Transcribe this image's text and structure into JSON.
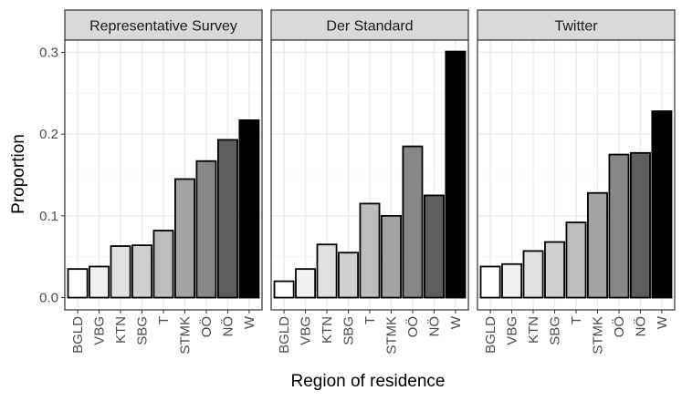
{
  "chart_data": {
    "type": "bar",
    "xlabel": "Region of residence",
    "ylabel": "Proportion",
    "ylim": [
      -0.015,
      0.315
    ],
    "yticks": [
      0.0,
      0.1,
      0.2,
      0.3
    ],
    "ytick_labels": [
      "0.0",
      "0.1",
      "0.2",
      "0.3"
    ],
    "categories": [
      "BGLD",
      "VBG",
      "KTN",
      "SBG",
      "T",
      "STMK",
      "OÖ",
      "NÖ",
      "W"
    ],
    "grid": true,
    "legend": "none",
    "fill_colors": [
      "#ffffff",
      "#f0f0f0",
      "#e0e0e0",
      "#d0d0d0",
      "#bdbdbd",
      "#a3a3a3",
      "#878787",
      "#5e5e5e",
      "#000000"
    ],
    "facets": [
      {
        "name": "Representative Survey",
        "values": [
          0.035,
          0.038,
          0.063,
          0.064,
          0.082,
          0.145,
          0.167,
          0.193,
          0.217
        ]
      },
      {
        "name": "Der Standard",
        "values": [
          0.02,
          0.035,
          0.065,
          0.055,
          0.115,
          0.1,
          0.185,
          0.125,
          0.301
        ]
      },
      {
        "name": "Twitter",
        "values": [
          0.038,
          0.041,
          0.057,
          0.068,
          0.092,
          0.128,
          0.175,
          0.177,
          0.228
        ]
      }
    ]
  }
}
